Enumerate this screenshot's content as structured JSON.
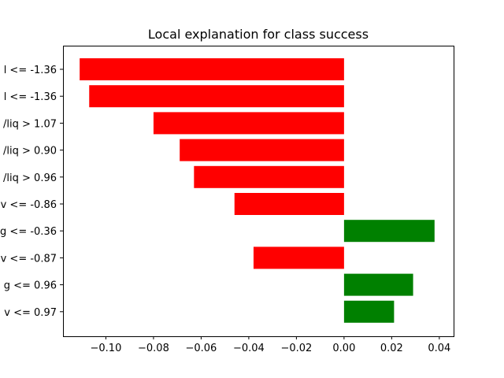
{
  "chart_data": {
    "type": "bar",
    "orientation": "horizontal",
    "title": "Local explanation for class success",
    "xlabel": "",
    "ylabel": "",
    "xlim": [
      -0.118,
      0.046
    ],
    "xticks": [
      -0.1,
      -0.08,
      -0.06,
      -0.04,
      -0.02,
      0.0,
      0.02,
      0.04
    ],
    "xtick_labels": [
      "−0.10",
      "−0.08",
      "−0.06",
      "−0.04",
      "−0.02",
      "0.00",
      "0.02",
      "0.04"
    ],
    "grid": false,
    "categories": [
      "l <= -1.36",
      "l <= -1.36",
      "/liq > 1.07",
      "/liq > 0.90",
      "/liq > 0.96",
      "v <= -0.86",
      "g <= -0.36",
      "v <= -0.87",
      "g <= 0.96",
      "v <= 0.97"
    ],
    "values": [
      -0.111,
      -0.107,
      -0.08,
      -0.069,
      -0.063,
      -0.046,
      0.038,
      -0.038,
      0.029,
      0.021
    ],
    "colors": {
      "negative": "#ff0000",
      "positive": "#008000"
    }
  }
}
